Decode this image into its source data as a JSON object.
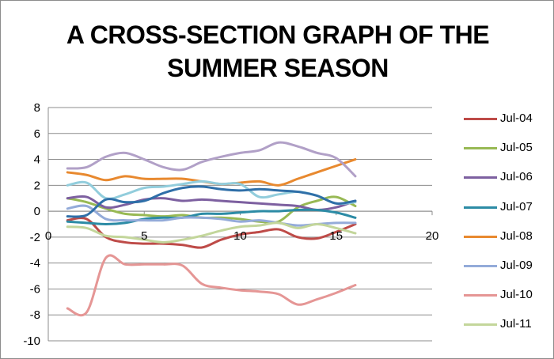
{
  "chart_data": {
    "type": "line",
    "title_lines": [
      "A CROSS-SECTION GRAPH OF THE",
      "SUMMER SEASON"
    ],
    "xlabel": "",
    "ylabel": "",
    "xlim": [
      0,
      20
    ],
    "ylim": [
      -10,
      8
    ],
    "x_ticks": [
      0,
      5,
      10,
      15,
      20
    ],
    "y_ticks": [
      8,
      6,
      4,
      2,
      0,
      -2,
      -4,
      -6,
      -8,
      -10
    ],
    "grid": "horizontal",
    "legend_position": "right",
    "smooth": true,
    "x": [
      1,
      2,
      3,
      4,
      5,
      6,
      7,
      8,
      9,
      10,
      11,
      12,
      13,
      14,
      15,
      16
    ],
    "series": [
      {
        "name": "Jul-04",
        "color": "#be4b48",
        "values": [
          -0.7,
          -0.6,
          -2.0,
          -2.4,
          -2.5,
          -2.5,
          -2.6,
          -2.8,
          -2.2,
          -1.8,
          -1.6,
          -1.4,
          -2.0,
          -2.1,
          -1.6,
          -1.0
        ]
      },
      {
        "name": "Jul-05",
        "color": "#98b954",
        "values": [
          1.0,
          0.7,
          0.2,
          -0.2,
          -0.3,
          -0.4,
          -0.3,
          -0.5,
          -0.5,
          -0.6,
          -0.8,
          -0.8,
          0.3,
          0.8,
          1.1,
          0.4
        ]
      },
      {
        "name": "Jul-06",
        "color": "#7d60a0",
        "values": [
          1.0,
          1.1,
          0.3,
          0.5,
          0.9,
          1.0,
          0.8,
          0.9,
          0.8,
          0.7,
          0.6,
          0.5,
          0.4,
          0.1,
          0.3,
          0.8
        ]
      },
      {
        "name": "Jul-07",
        "color": "#2c8ba5",
        "values": [
          -0.8,
          -0.9,
          -1.0,
          -0.9,
          -0.6,
          -0.5,
          -0.5,
          -0.2,
          -0.2,
          -0.1,
          0.0,
          0.0,
          0.1,
          0.1,
          -0.1,
          -0.5
        ]
      },
      {
        "name": "Jul-08",
        "color": "#e8892f",
        "values": [
          3.0,
          2.8,
          2.4,
          2.7,
          2.5,
          2.5,
          2.5,
          2.3,
          2.1,
          2.2,
          2.3,
          2.0,
          2.5,
          3.0,
          3.5,
          4.0
        ]
      },
      {
        "name": "Jul-09",
        "color": "#94abd9",
        "values": [
          0.2,
          0.4,
          -0.6,
          -0.7,
          -0.7,
          -0.7,
          -0.5,
          -0.5,
          -0.6,
          -0.8,
          -0.7,
          -0.9,
          -1.1,
          -1.0,
          -0.9,
          -0.9
        ]
      },
      {
        "name": "Jul-10",
        "color": "#e59695",
        "values": [
          -7.5,
          -7.8,
          -3.6,
          -4.1,
          -4.1,
          -4.1,
          -4.2,
          -5.6,
          -5.9,
          -6.1,
          -6.2,
          -6.4,
          -7.2,
          -6.8,
          -6.3,
          -5.7
        ]
      },
      {
        "name": "Jul-11",
        "color": "#c3d69b",
        "values": [
          -1.2,
          -1.3,
          -1.9,
          -2.0,
          -2.2,
          -2.4,
          -2.2,
          -1.9,
          -1.5,
          -1.2,
          -1.1,
          -0.9,
          -1.3,
          -1.0,
          -1.3,
          -1.7
        ]
      },
      {
        "name": "",
        "color": "#b1a0c7",
        "values": [
          3.3,
          3.4,
          4.2,
          4.5,
          4.0,
          3.4,
          3.2,
          3.8,
          4.2,
          4.5,
          4.7,
          5.3,
          5.0,
          4.5,
          4.1,
          2.7
        ]
      },
      {
        "name": "",
        "color": "#92cddc",
        "values": [
          2.0,
          2.2,
          1.0,
          1.3,
          1.8,
          1.9,
          2.1,
          2.3,
          2.1,
          2.1,
          1.1,
          1.3,
          1.5,
          1.2,
          0.6,
          0.7
        ]
      },
      {
        "name": "",
        "color": "#2f6fa8",
        "values": [
          -0.4,
          -0.3,
          0.9,
          0.7,
          0.8,
          1.4,
          1.8,
          1.9,
          1.7,
          1.6,
          1.7,
          1.6,
          1.5,
          1.2,
          0.6,
          0.8
        ]
      }
    ]
  }
}
